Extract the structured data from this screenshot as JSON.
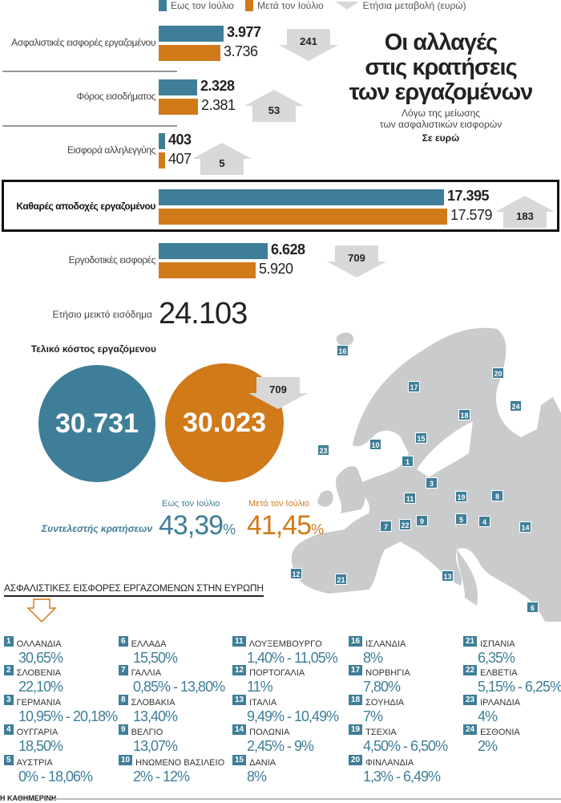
{
  "legend": {
    "before": "Εως τον Ιούλιο",
    "after": "Μετά τον Ιούλιο",
    "change": "Ετήσια μεταβολή (ευρώ)"
  },
  "colors": {
    "before": "#3f7e98",
    "after": "#d07a1a",
    "arrow": "#d8d8d8",
    "map": "#c9cbcd"
  },
  "title": {
    "main_lines": [
      "Οι αλλαγές",
      "στις κρατήσεις",
      "των εργαζομένων"
    ],
    "subtitle_lines": [
      "Λόγω της μείωσης",
      "των ασφαλιστικών εισφορών"
    ],
    "unit": "Σε ευρώ"
  },
  "chart_data": {
    "type": "bar",
    "orientation": "horizontal",
    "unit": "ευρώ",
    "categories": [
      "Ασφαλιστικές εισφορές εργαζομένου",
      "Φόρος εισοδήματος",
      "Εισφορά αλληλεγγύης",
      "Καθαρές αποδοχές εργαζομένου",
      "Εργοδοτικές εισφορές"
    ],
    "series": [
      {
        "name": "Εως τον Ιούλιο",
        "values": [
          3977,
          2328,
          403,
          17395,
          6628
        ],
        "labels": [
          "3.977",
          "2.328",
          "403",
          "17.395",
          "6.628"
        ]
      },
      {
        "name": "Μετά τον Ιούλιο",
        "values": [
          3736,
          2381,
          407,
          17579,
          5920
        ],
        "labels": [
          "3.736",
          "2.381",
          "407",
          "17.579",
          "5.920"
        ]
      }
    ],
    "annual_change": [
      {
        "value": "241",
        "direction": "down"
      },
      {
        "value": "53",
        "direction": "up"
      },
      {
        "value": "5",
        "direction": "up"
      },
      {
        "value": "183",
        "direction": "up"
      },
      {
        "value": "709",
        "direction": "down"
      }
    ]
  },
  "gross": {
    "label": "Ετήσιο μεικτό εισόδημα",
    "value": "24.103"
  },
  "cost": {
    "label": "Τελικό κόστος εργαζόμενου",
    "before": "30.731",
    "after": "30.023",
    "change": "709"
  },
  "rate": {
    "label": "Συντελεστής κρατήσεων",
    "before_label": "Εως τον Ιούλιο",
    "after_label": "Μετά τον Ιούλιο",
    "before": "43,39",
    "after": "41,45",
    "pct": "%"
  },
  "europe": {
    "heading": "ΑΣΦΑΛΙΣΤΙΚΕΣ ΕΙΣΦΟΡΕΣ ΕΡΓΑΖΟΜΕΝΩΝ ΣΤΗΝ ΕΥΡΩΠΗ",
    "countries": [
      {
        "n": "1",
        "name": "ΟΛΛΑΝΔΙΑ",
        "rate": "30,65%"
      },
      {
        "n": "2",
        "name": "ΣΛΟΒΕΝΙΑ",
        "rate": "22,10%"
      },
      {
        "n": "3",
        "name": "ΓΕΡΜΑΝΙΑ",
        "rate": "10,95% - 20,18%"
      },
      {
        "n": "4",
        "name": "ΟΥΓΓΑΡΙΑ",
        "rate": "18,50%"
      },
      {
        "n": "5",
        "name": "ΑΥΣΤΡΙΑ",
        "rate": "0% - 18,06%"
      },
      {
        "n": "6",
        "name": "ΕΛΛΑΔΑ",
        "rate": "15,50%"
      },
      {
        "n": "7",
        "name": "ΓΑΛΛΙΑ",
        "rate": "0,85% - 13,80%"
      },
      {
        "n": "8",
        "name": "ΣΛΟΒΑΚΙΑ",
        "rate": "13,40%"
      },
      {
        "n": "9",
        "name": "ΒΕΛΓΙΟ",
        "rate": "13,07%"
      },
      {
        "n": "10",
        "name": "ΗΝΩΜΕΝΟ ΒΑΣΙΛΕΙΟ",
        "rate": "2% - 12%"
      },
      {
        "n": "11",
        "name": "ΛΟΥΞΕΜΒΟΥΡΓΟ",
        "rate": "1,40% - 11,05%"
      },
      {
        "n": "12",
        "name": "ΠΟΡΤΟΓΑΛΙΑ",
        "rate": "11%"
      },
      {
        "n": "13",
        "name": "ΙΤΑΛΙΑ",
        "rate": "9,49% - 10,49%"
      },
      {
        "n": "14",
        "name": "ΠΟΛΩΝΙΑ",
        "rate": "2,45% - 9%"
      },
      {
        "n": "15",
        "name": "ΔΑΝΙΑ",
        "rate": "8%"
      },
      {
        "n": "16",
        "name": "ΙΣΛΑΝΔΙΑ",
        "rate": "8%"
      },
      {
        "n": "17",
        "name": "ΝΟΡΒΗΓΙΑ",
        "rate": "7,80%"
      },
      {
        "n": "18",
        "name": "ΣΟΥΗΔΙΑ",
        "rate": "7%"
      },
      {
        "n": "19",
        "name": "ΤΣΕΧΙΑ",
        "rate": "4,50% - 6,50%"
      },
      {
        "n": "20",
        "name": "ΦΙΝΛΑΝΔΙΑ",
        "rate": "1,3% - 6,49%"
      },
      {
        "n": "21",
        "name": "ΙΣΠΑΝΙΑ",
        "rate": "6,35%"
      },
      {
        "n": "22",
        "name": "ΕΛΒΕΤΙΑ",
        "rate": "5,15% - 6,25%"
      },
      {
        "n": "23",
        "name": "ΙΡΛΑΝΔΙΑ",
        "rate": "4%"
      },
      {
        "n": "24",
        "name": "ΕΣΘΟΝΙΑ",
        "rate": "2%"
      }
    ]
  },
  "source": "Η ΚΑΘΗΜΕΡΙΝΗ"
}
